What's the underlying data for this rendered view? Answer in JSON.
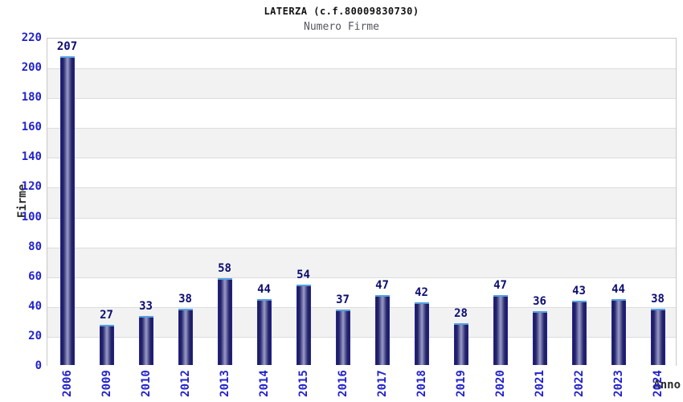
{
  "header": {
    "title": "LATERZA (c.f.80009830730)",
    "subtitle": "Numero Firme"
  },
  "chart_data": {
    "type": "bar",
    "title": "LATERZA (c.f.80009830730)",
    "subtitle": "Numero Firme",
    "xlabel": "Anno",
    "ylabel": "Firme",
    "categories": [
      "2006",
      "2009",
      "2010",
      "2012",
      "2013",
      "2014",
      "2015",
      "2016",
      "2017",
      "2018",
      "2019",
      "2020",
      "2021",
      "2022",
      "2023",
      "2024"
    ],
    "values": [
      207,
      27,
      33,
      38,
      58,
      44,
      54,
      37,
      47,
      42,
      28,
      47,
      36,
      43,
      44,
      38
    ],
    "ylim": [
      0,
      220
    ],
    "ytick_step": 20,
    "grid": true,
    "legend": "none",
    "band_colors": [
      "#ffffff",
      "#f2f2f2"
    ],
    "colors": {
      "tick_label": "#2222cc",
      "value_label": "#0d0d70",
      "axis_title": "#2b2b2b",
      "bar_cap": "#55a0e2",
      "bar_dark": "#1c1c60",
      "bar_light": "#9c9cc8",
      "bar_edge": "#2a2abe",
      "plot_border": "#c8c8c8",
      "gridline": "#dcdcdc"
    }
  }
}
